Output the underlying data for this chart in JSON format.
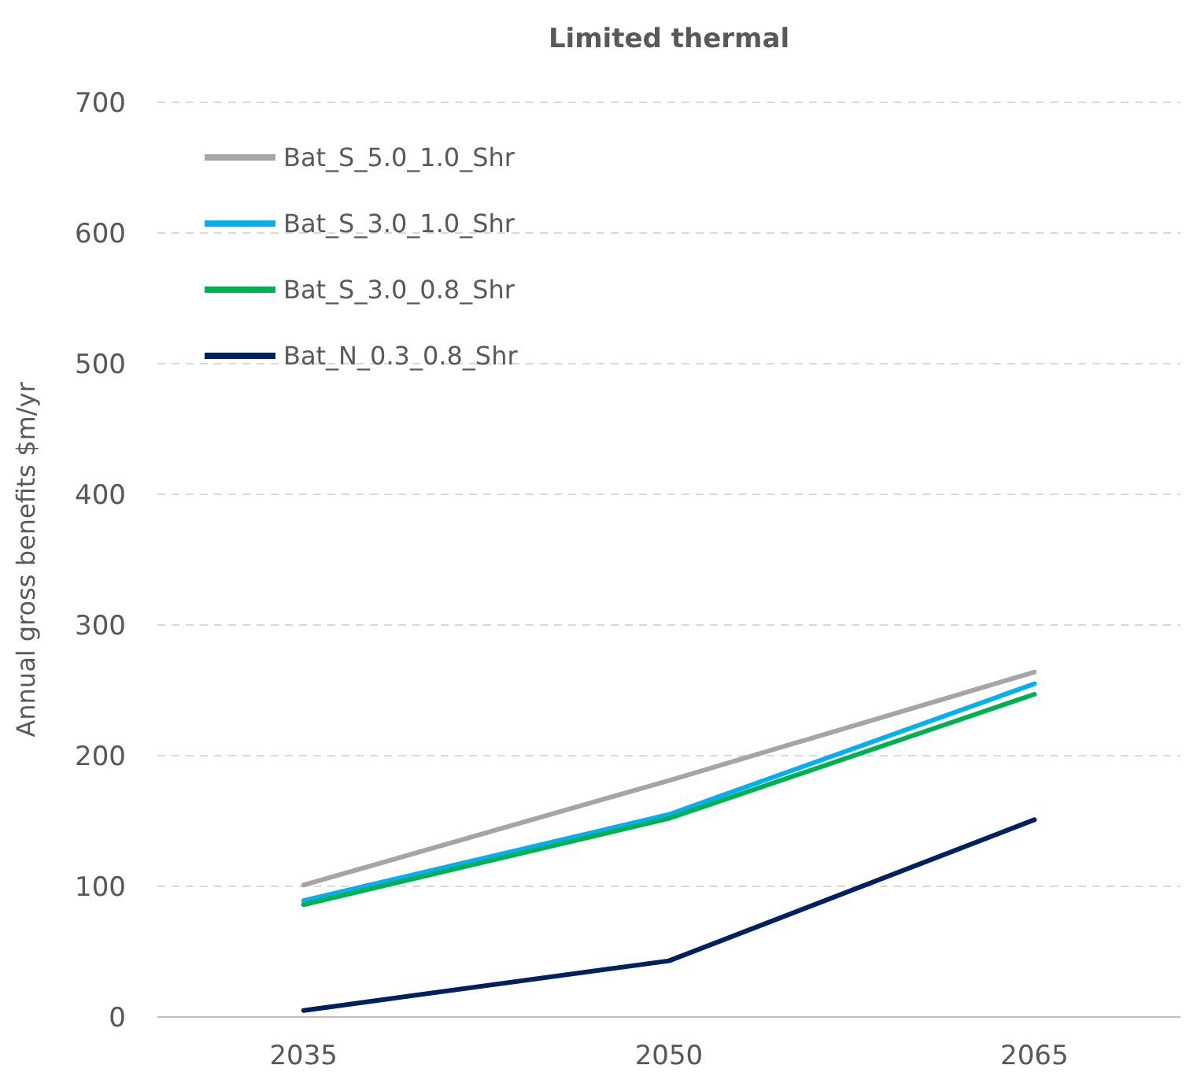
{
  "chart_data": {
    "type": "line",
    "title": "Limited thermal",
    "ylabel": "Annual gross benefits $m/yr",
    "categories": [
      "2035",
      "2050",
      "2065"
    ],
    "series": [
      {
        "name": "Bat_S_5.0_1.0_Shr",
        "color": "#a5a5a5",
        "values": [
          101,
          181,
          264
        ]
      },
      {
        "name": "Bat_S_3.0_1.0_Shr",
        "color": "#00b0f0",
        "values": [
          89,
          155,
          255
        ]
      },
      {
        "name": "Bat_S_3.0_0.8_Shr",
        "color": "#00b050",
        "values": [
          86,
          152,
          247
        ]
      },
      {
        "name": "Bat_N_0.3_0.8_Shr",
        "color": "#002060",
        "values": [
          5,
          43,
          151
        ]
      }
    ],
    "ylim": [
      0,
      700
    ],
    "yticks": [
      0,
      100,
      200,
      300,
      400,
      500,
      600,
      700
    ],
    "grid": "y",
    "legend": "top left",
    "marker": "none",
    "line_style": "solid"
  }
}
